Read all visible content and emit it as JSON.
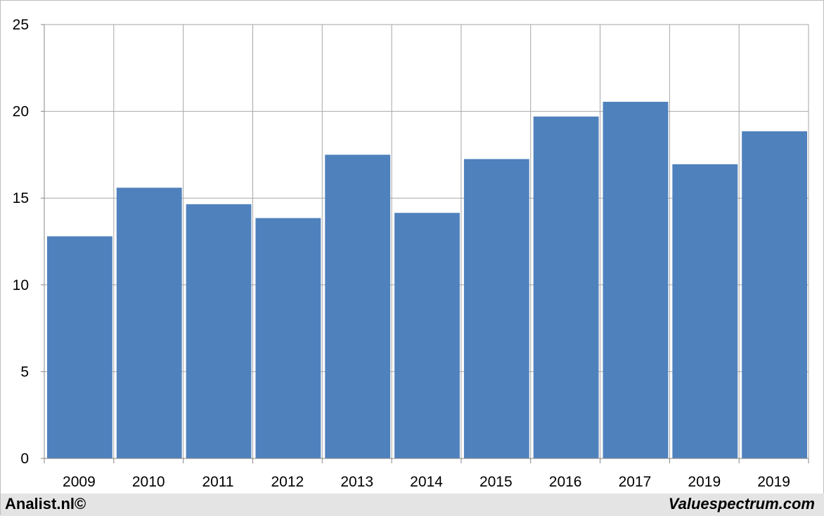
{
  "chart_data": {
    "type": "bar",
    "categories": [
      "2009",
      "2010",
      "2011",
      "2012",
      "2013",
      "2014",
      "2015",
      "2016",
      "2017",
      "2019",
      "2019"
    ],
    "values": [
      12.8,
      15.6,
      14.65,
      13.85,
      17.5,
      14.15,
      17.25,
      19.7,
      20.55,
      16.95,
      18.85
    ],
    "ylim": [
      0,
      25
    ],
    "yticks": [
      "0",
      "5",
      "10",
      "15",
      "20",
      "25"
    ],
    "grid": true,
    "legend": "none",
    "bar_color": "#4f81bd",
    "grid_color": "#a6a6a6"
  },
  "footer": {
    "left_text": "Analist.nl©",
    "right_text": "Valuespectrum.com"
  }
}
